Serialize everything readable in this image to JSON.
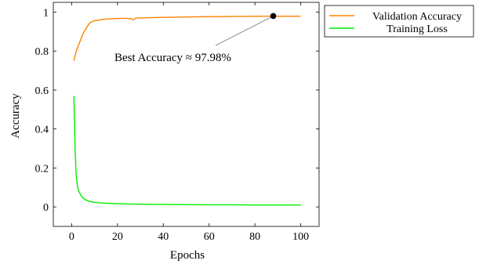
{
  "chart_data": {
    "type": "line",
    "title": "",
    "xlabel": "Epochs",
    "ylabel": "Accuracy",
    "xlim": [
      -8,
      108
    ],
    "ylim": [
      -0.1,
      1.05
    ],
    "xticks": [
      0,
      20,
      40,
      60,
      80,
      100
    ],
    "yticks": [
      0,
      0.2,
      0.4,
      0.6,
      0.8,
      1
    ],
    "xtick_labels": [
      "0",
      "20",
      "40",
      "60",
      "80",
      "100"
    ],
    "ytick_labels": [
      "0",
      "0.2",
      "0.4",
      "0.6",
      "0.8",
      "1"
    ],
    "grid": false,
    "legend_position": "outside-top-right",
    "series": [
      {
        "name": "Validation Accuracy",
        "color": "#ff8000",
        "x": [
          1,
          2,
          3,
          4,
          5,
          6,
          7,
          8,
          9,
          10,
          12,
          14,
          16,
          18,
          20,
          22,
          24,
          26,
          27,
          28,
          30,
          35,
          40,
          45,
          50,
          55,
          60,
          65,
          70,
          75,
          80,
          85,
          88,
          90,
          95,
          100
        ],
        "y": [
          0.75,
          0.8,
          0.83,
          0.86,
          0.89,
          0.91,
          0.93,
          0.945,
          0.952,
          0.956,
          0.96,
          0.963,
          0.965,
          0.966,
          0.967,
          0.968,
          0.968,
          0.966,
          0.96,
          0.97,
          0.97,
          0.972,
          0.973,
          0.974,
          0.975,
          0.976,
          0.977,
          0.977,
          0.978,
          0.978,
          0.979,
          0.979,
          0.9798,
          0.979,
          0.979,
          0.979
        ]
      },
      {
        "name": "Training Loss",
        "color": "#00ee00",
        "x": [
          1,
          1.5,
          2,
          2.5,
          3,
          4,
          5,
          6,
          7,
          8,
          10,
          12,
          15,
          20,
          25,
          30,
          40,
          50,
          60,
          70,
          80,
          90,
          100
        ],
        "y": [
          0.57,
          0.3,
          0.16,
          0.11,
          0.085,
          0.06,
          0.045,
          0.037,
          0.032,
          0.028,
          0.024,
          0.021,
          0.019,
          0.017,
          0.015,
          0.014,
          0.013,
          0.012,
          0.011,
          0.011,
          0.01,
          0.01,
          0.01
        ]
      }
    ],
    "annotation": {
      "text": "Best Accuracy ≈ 97.98%",
      "x": 88,
      "y": 0.9798
    }
  }
}
